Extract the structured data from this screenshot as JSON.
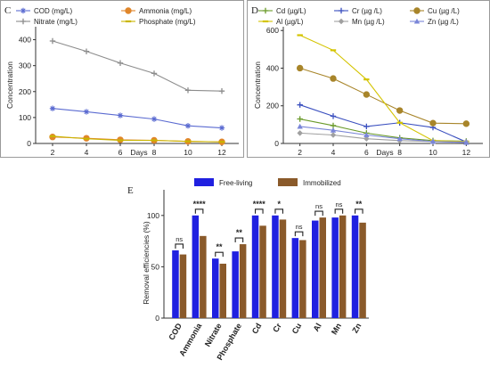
{
  "panels": {
    "c": {
      "letter": "C",
      "xlabel": "Days",
      "ylabel": "Concentration",
      "ylim": [
        0,
        450
      ],
      "yticks": [
        0,
        100,
        200,
        300,
        400
      ],
      "x": [
        2,
        4,
        6,
        8,
        10,
        12
      ],
      "series": [
        {
          "name": "COD (mg/L)",
          "color": "#5b6bd1",
          "marker": "asterisk",
          "values": [
            135,
            122,
            108,
            94,
            68,
            60
          ]
        },
        {
          "name": "Ammonia (mg/L)",
          "color": "#e0862a",
          "marker": "circle",
          "values": [
            25,
            20,
            14,
            12,
            8,
            6
          ]
        },
        {
          "name": "Nitrate (mg/L)",
          "color": "#8c8c8c",
          "marker": "plus",
          "values": [
            395,
            355,
            310,
            270,
            205,
            202
          ]
        },
        {
          "name": "Phosphate  (mg/L)",
          "color": "#c9b600",
          "marker": "dash",
          "values": [
            28,
            18,
            12,
            12,
            8,
            6
          ]
        }
      ]
    },
    "d": {
      "letter": "D",
      "xlabel": "Days",
      "ylabel": "Concentration",
      "ylim": [
        0,
        620
      ],
      "yticks": [
        0,
        200,
        400,
        600
      ],
      "x": [
        2,
        4,
        6,
        8,
        10,
        12
      ],
      "series": [
        {
          "name": "Cd (µg/L)",
          "color": "#6a9a2a",
          "marker": "plus",
          "values": [
            130,
            95,
            55,
            30,
            15,
            12
          ]
        },
        {
          "name": "Cr (µg /L)",
          "color": "#3a4fbf",
          "marker": "plus",
          "values": [
            205,
            145,
            90,
            110,
            85,
            8
          ]
        },
        {
          "name": "Cu (µg /L)",
          "color": "#a8852a",
          "marker": "circle",
          "values": [
            400,
            345,
            260,
            175,
            108,
            105
          ]
        },
        {
          "name": "Al (µg/L)",
          "color": "#d4c400",
          "marker": "dash",
          "values": [
            575,
            495,
            340,
            110,
            15,
            10
          ]
        },
        {
          "name": "Mn (µg /L)",
          "color": "#a0a0a0",
          "marker": "diamond",
          "values": [
            55,
            45,
            25,
            15,
            10,
            8
          ]
        },
        {
          "name": "Zn (µg /L)",
          "color": "#7a86d8",
          "marker": "triangle",
          "values": [
            90,
            70,
            45,
            25,
            10,
            5
          ]
        }
      ]
    }
  },
  "chart_data": {
    "type": "bar",
    "letter": "E",
    "ylabel": "Removal efficiencies (%)",
    "ylim": [
      0,
      125
    ],
    "yticks": [
      0,
      50,
      100
    ],
    "categories": [
      "COD",
      "Ammonia",
      "Nitrate",
      "Phosphate",
      "Cd",
      "Cr",
      "Cu",
      "Al",
      "Mn",
      "Zn"
    ],
    "series": [
      {
        "name": "Free-living",
        "color": "#2020e0",
        "values": [
          66,
          100,
          58,
          65,
          100,
          100,
          78,
          95,
          98,
          100
        ]
      },
      {
        "name": "Immobilized",
        "color": "#8a5a2a",
        "values": [
          62,
          80,
          53,
          72,
          90,
          96,
          76,
          98,
          100,
          93
        ]
      }
    ],
    "significance": [
      "ns",
      "****",
      "**",
      "**",
      "****",
      "*",
      "ns",
      "ns",
      "ns",
      "**"
    ]
  }
}
